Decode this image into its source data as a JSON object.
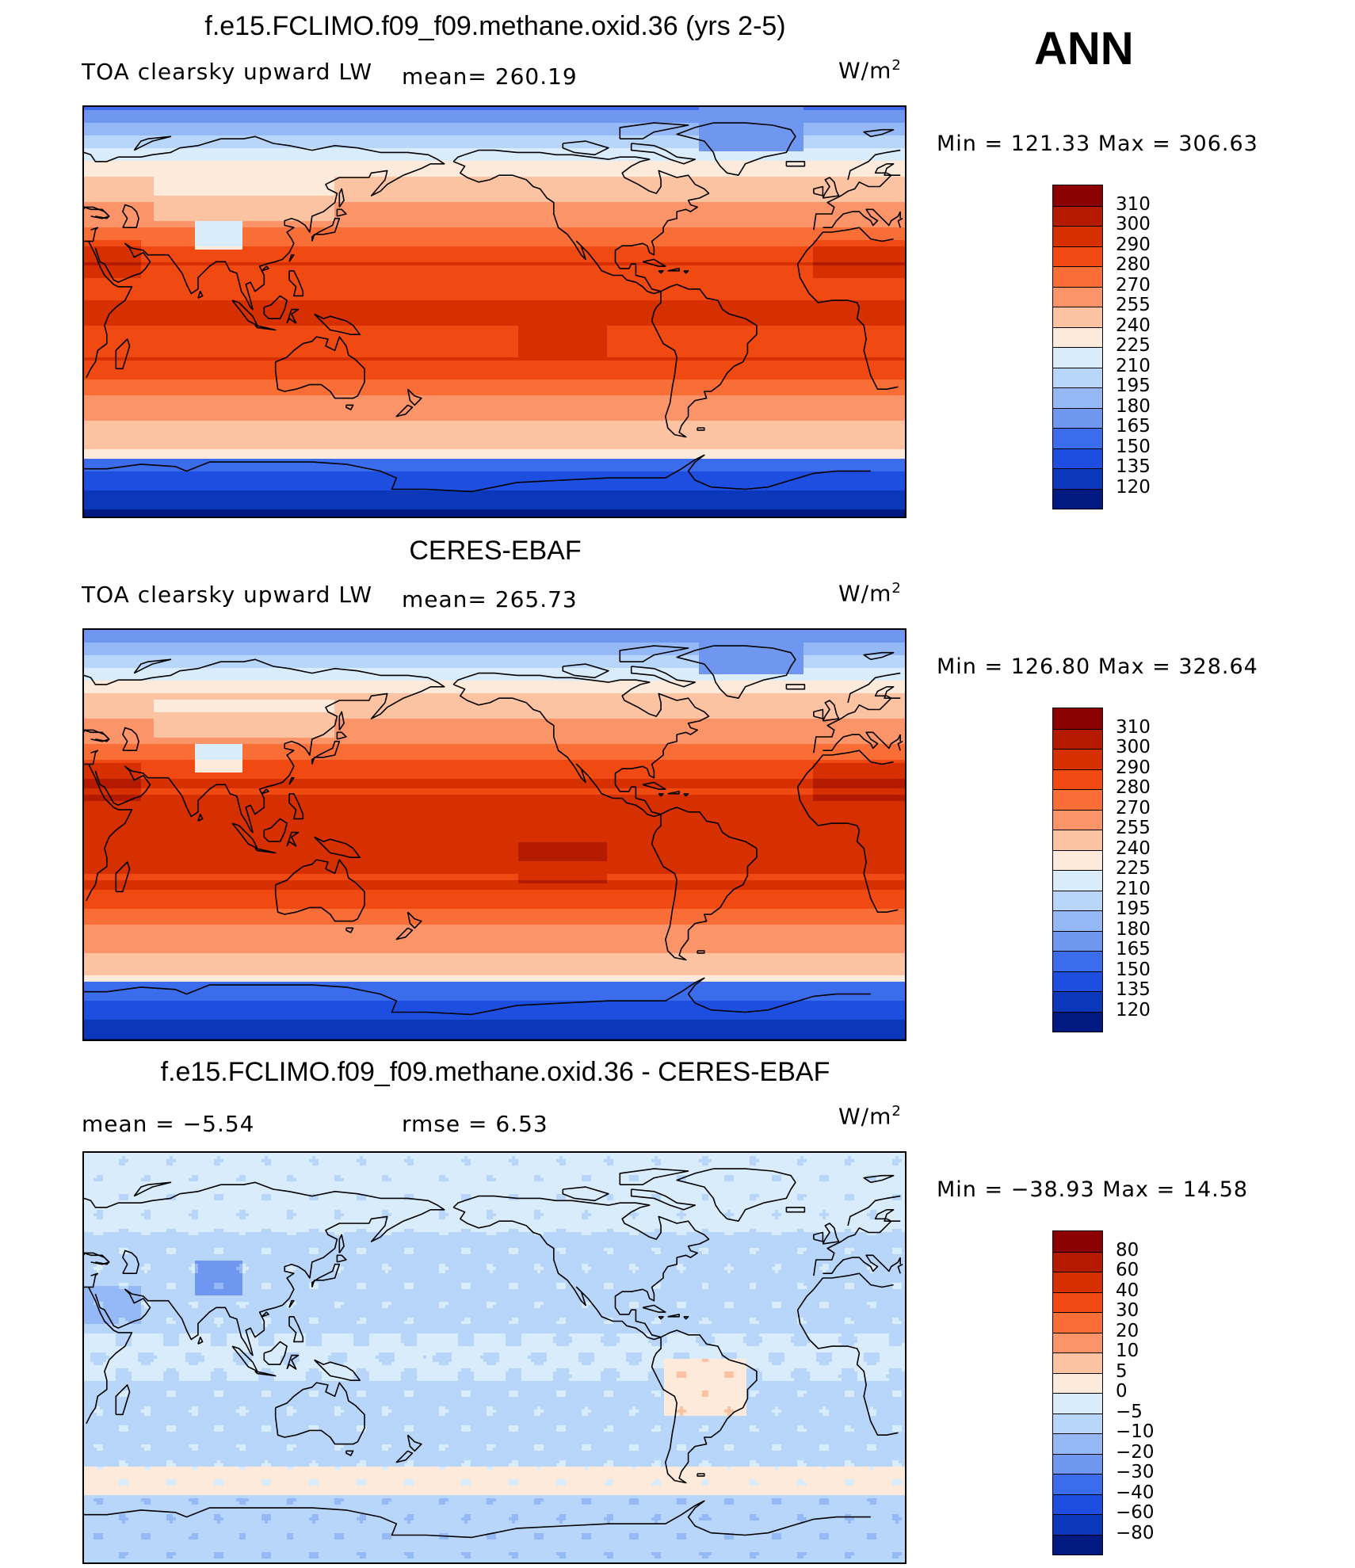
{
  "season": "ANN",
  "panels": [
    {
      "title": "f.e15.FCLIMO.f09_f09.methane.oxid.36 (yrs 2-5)",
      "left_text": "TOA clearsky upward LW",
      "mid_text": "mean=  260.19",
      "unit_base": "W/m",
      "unit_exp": "2",
      "minmax": "Min  =  121.33  Max  =  306.63",
      "levels": [
        "310",
        "300",
        "290",
        "280",
        "270",
        "255",
        "240",
        "225",
        "210",
        "195",
        "180",
        "165",
        "150",
        "135",
        "120"
      ],
      "colors": [
        "#8b0000",
        "#b31a00",
        "#d63000",
        "#f04a12",
        "#f86e36",
        "#fb9468",
        "#fcc3a2",
        "#feeadb",
        "#d9ecfb",
        "#b7d6fa",
        "#94b9f6",
        "#6f97f0",
        "#3b6cec",
        "#1d4ee0",
        "#0b37bb",
        "#001a82"
      ]
    },
    {
      "title": "CERES-EBAF",
      "left_text": "TOA clearsky upward LW",
      "mid_text": "mean=  265.73",
      "unit_base": "W/m",
      "unit_exp": "2",
      "minmax": "Min  =  126.80  Max  =  328.64",
      "levels": [
        "310",
        "300",
        "290",
        "280",
        "270",
        "255",
        "240",
        "225",
        "210",
        "195",
        "180",
        "165",
        "150",
        "135",
        "120"
      ],
      "colors": [
        "#8b0000",
        "#b31a00",
        "#d63000",
        "#f04a12",
        "#f86e36",
        "#fb9468",
        "#fcc3a2",
        "#feeadb",
        "#d9ecfb",
        "#b7d6fa",
        "#94b9f6",
        "#6f97f0",
        "#3b6cec",
        "#1d4ee0",
        "#0b37bb",
        "#001a82"
      ]
    },
    {
      "title": "f.e15.FCLIMO.f09_f09.methane.oxid.36 - CERES-EBAF",
      "left_text": "mean  =    −5.54",
      "mid_text": "rmse  =     6.53",
      "unit_base": "W/m",
      "unit_exp": "2",
      "minmax": "Min  =  −38.93  Max  =    14.58",
      "levels": [
        "80",
        "60",
        "40",
        "30",
        "20",
        "10",
        "5",
        "0",
        "−5",
        "−10",
        "−20",
        "−30",
        "−40",
        "−60",
        "−80"
      ],
      "colors": [
        "#8b0000",
        "#b31a00",
        "#d63000",
        "#f04a12",
        "#f86e36",
        "#fb9468",
        "#fcc3a2",
        "#feeadb",
        "#d9ecfb",
        "#b7d6fa",
        "#94b9f6",
        "#6f97f0",
        "#3b6cec",
        "#1d4ee0",
        "#0b37bb",
        "#001a82"
      ]
    }
  ]
}
